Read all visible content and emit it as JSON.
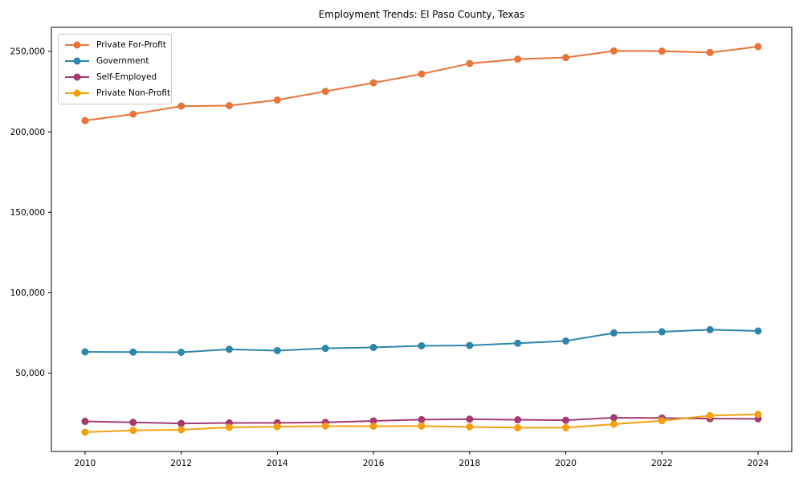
{
  "chart_data": {
    "type": "line",
    "title": "Employment Trends: El Paso County, Texas",
    "xlabel": "",
    "ylabel": "",
    "x": [
      2010,
      2011,
      2012,
      2013,
      2014,
      2015,
      2016,
      2017,
      2018,
      2019,
      2020,
      2021,
      2022,
      2023,
      2024
    ],
    "series": [
      {
        "name": "Private For-Profit",
        "color": "#E8743B",
        "values": [
          207000,
          211000,
          216000,
          216300,
          219800,
          225200,
          230500,
          236000,
          242500,
          245200,
          246200,
          250300,
          250200,
          249300,
          253000
        ]
      },
      {
        "name": "Government",
        "color": "#2E86AB",
        "values": [
          63200,
          63100,
          63000,
          64800,
          64000,
          65400,
          66000,
          67000,
          67200,
          68600,
          70000,
          75000,
          75700,
          77000,
          76200
        ]
      },
      {
        "name": "Self-Employed",
        "color": "#A23B72",
        "values": [
          20000,
          19400,
          18700,
          19000,
          19100,
          19400,
          20300,
          21100,
          21400,
          21000,
          20700,
          22300,
          22100,
          21700,
          21600
        ]
      },
      {
        "name": "Private Non-Profit",
        "color": "#F3A00F",
        "values": [
          13300,
          14400,
          14800,
          16300,
          16700,
          17100,
          17000,
          17100,
          16600,
          16100,
          16100,
          18300,
          20400,
          23600,
          24400
        ]
      }
    ],
    "x_ticks": [
      "2010",
      "2012",
      "2014",
      "2016",
      "2018",
      "2020",
      "2022",
      "2024"
    ],
    "y_ticks": [
      {
        "value": 50000,
        "label": "50,000"
      },
      {
        "value": 100000,
        "label": "100,000"
      },
      {
        "value": 150000,
        "label": "150,000"
      },
      {
        "value": 200000,
        "label": "200,000"
      },
      {
        "value": 250000,
        "label": "250,000"
      }
    ],
    "xlim": [
      2009.3,
      2024.7
    ],
    "ylim": [
      1300,
      265000
    ],
    "legend_position": "upper left",
    "grid": false
  }
}
